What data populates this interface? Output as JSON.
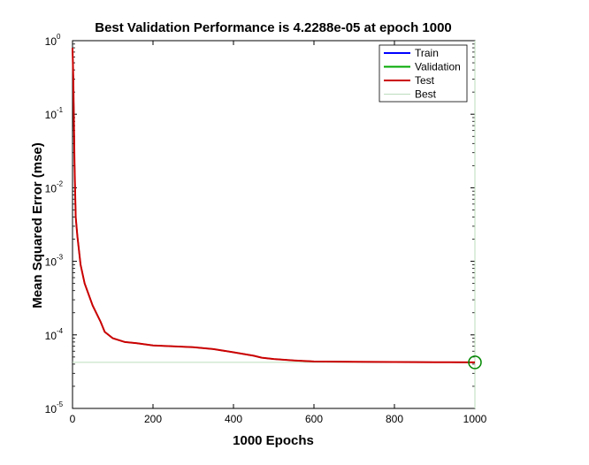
{
  "chart_data": {
    "type": "line",
    "title": "Best Validation Performance is 4.2288e-05 at epoch 1000",
    "xlabel": "1000 Epochs",
    "ylabel": "Mean Squared Error  (mse)",
    "xlim": [
      0,
      1000
    ],
    "ylim": [
      1e-05,
      1
    ],
    "yscale": "log",
    "x_ticks": [
      0,
      200,
      400,
      600,
      800,
      1000
    ],
    "y_ticks": [
      {
        "base": "10",
        "exp": "-5",
        "value": 1e-05
      },
      {
        "base": "10",
        "exp": "-4",
        "value": 0.0001
      },
      {
        "base": "10",
        "exp": "-3",
        "value": 0.001
      },
      {
        "base": "10",
        "exp": "-2",
        "value": 0.01
      },
      {
        "base": "10",
        "exp": "-1",
        "value": 0.1
      },
      {
        "base": "10",
        "exp": "0",
        "value": 1
      }
    ],
    "grid": false,
    "legend_position": "top-right",
    "series": [
      {
        "name": "Train",
        "color": "#0000ff",
        "x": [
          0,
          2,
          5,
          8,
          12,
          20,
          30,
          50,
          70,
          80,
          100,
          130,
          160,
          200,
          250,
          300,
          350,
          400,
          450,
          470,
          500,
          550,
          600,
          700,
          800,
          900,
          1000
        ],
        "y": [
          0.8,
          0.3,
          0.02,
          0.004,
          0.0022,
          0.0009,
          0.0005,
          0.00025,
          0.00015,
          0.00011,
          9e-05,
          8e-05,
          7.7e-05,
          7.2e-05,
          7e-05,
          6.8e-05,
          6.4e-05,
          5.8e-05,
          5.2e-05,
          4.9e-05,
          4.7e-05,
          4.5e-05,
          4.35e-05,
          4.3e-05,
          4.27e-05,
          4.25e-05,
          4.2288e-05
        ]
      },
      {
        "name": "Validation",
        "color": "#00aa00",
        "x": [
          0,
          2,
          5,
          8,
          12,
          20,
          30,
          50,
          70,
          80,
          100,
          130,
          160,
          200,
          250,
          300,
          350,
          400,
          450,
          470,
          500,
          550,
          600,
          700,
          800,
          900,
          1000
        ],
        "y": [
          0.8,
          0.3,
          0.02,
          0.004,
          0.0022,
          0.0009,
          0.0005,
          0.00025,
          0.00015,
          0.00011,
          9e-05,
          8e-05,
          7.7e-05,
          7.2e-05,
          7e-05,
          6.8e-05,
          6.4e-05,
          5.8e-05,
          5.2e-05,
          4.9e-05,
          4.7e-05,
          4.5e-05,
          4.35e-05,
          4.3e-05,
          4.27e-05,
          4.25e-05,
          4.2288e-05
        ]
      },
      {
        "name": "Test",
        "color": "#cc0000",
        "x": [
          0,
          2,
          5,
          8,
          12,
          20,
          30,
          50,
          70,
          80,
          100,
          130,
          160,
          200,
          250,
          300,
          350,
          400,
          450,
          470,
          500,
          550,
          600,
          700,
          800,
          900,
          1000
        ],
        "y": [
          0.8,
          0.3,
          0.02,
          0.004,
          0.0022,
          0.0009,
          0.0005,
          0.00025,
          0.00015,
          0.00011,
          9e-05,
          8e-05,
          7.7e-05,
          7.2e-05,
          7e-05,
          6.8e-05,
          6.4e-05,
          5.8e-05,
          5.2e-05,
          4.9e-05,
          4.7e-05,
          4.5e-05,
          4.35e-05,
          4.3e-05,
          4.27e-05,
          4.25e-05,
          4.2288e-05
        ]
      }
    ],
    "best": {
      "name": "Best",
      "color": "#bbddbb",
      "epoch": 1000,
      "value": 4.2288e-05,
      "marker_color": "#008800"
    }
  }
}
